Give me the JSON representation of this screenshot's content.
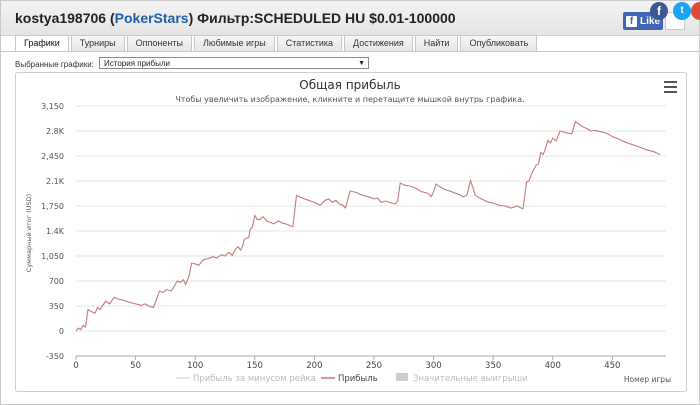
{
  "header": {
    "player": "kostya198706",
    "open_paren": "(",
    "room": "PokerStars",
    "close_paren": ")",
    "filter": "Фильтр:SCHEDULED HU $0.01-100000",
    "like_label": "Like"
  },
  "social": {
    "facebook_glyph": "f",
    "twitter_glyph": "t",
    "colors": {
      "facebook": "#3b5998",
      "twitter": "#1da1f2",
      "google": "#dd4b39"
    }
  },
  "tabs": [
    {
      "label": "Графики",
      "active": true
    },
    {
      "label": "Турниры"
    },
    {
      "label": "Оппоненты"
    },
    {
      "label": "Любимые игры"
    },
    {
      "label": "Статистика"
    },
    {
      "label": "Достижения"
    },
    {
      "label": "Найти"
    },
    {
      "label": "Опубликовать"
    }
  ],
  "selector": {
    "label": "Выбранные графики:",
    "value": "История прибыли",
    "arrow": "▼"
  },
  "chart_data": {
    "type": "line",
    "title": "Общая прибыль",
    "subtitle": "Чтобы увеличить изображение, кликните и перетащите мышкой внутрь графика.",
    "xlabel": "Номер игры",
    "ylabel": "Суммарный итог (USD)",
    "xlim": [
      0,
      495
    ],
    "ylim": [
      -350,
      3150
    ],
    "x_ticks": [
      0,
      50,
      100,
      150,
      200,
      250,
      300,
      350,
      400,
      450
    ],
    "y_ticks": [
      -350,
      0,
      350,
      700,
      1050,
      1400,
      1750,
      2100,
      2450,
      2800,
      3150
    ],
    "y_tick_labels": [
      "-350",
      "0",
      "350",
      "700",
      "1,050",
      "1.4K",
      "1,750",
      "2.1K",
      "2,450",
      "2.8K",
      "3,150"
    ],
    "grid": true,
    "legend_position": "bottom-center",
    "series": [
      {
        "name": "Прибыль",
        "color": "#c47b7b",
        "points": [
          [
            0,
            0
          ],
          [
            2,
            40
          ],
          [
            4,
            20
          ],
          [
            6,
            80
          ],
          [
            8,
            50
          ],
          [
            10,
            300
          ],
          [
            13,
            270
          ],
          [
            16,
            250
          ],
          [
            18,
            330
          ],
          [
            20,
            300
          ],
          [
            25,
            420
          ],
          [
            28,
            380
          ],
          [
            32,
            470
          ],
          [
            35,
            450
          ],
          [
            40,
            430
          ],
          [
            45,
            400
          ],
          [
            50,
            380
          ],
          [
            55,
            360
          ],
          [
            58,
            380
          ],
          [
            62,
            340
          ],
          [
            65,
            330
          ],
          [
            67,
            420
          ],
          [
            70,
            560
          ],
          [
            73,
            540
          ],
          [
            76,
            580
          ],
          [
            80,
            560
          ],
          [
            85,
            700
          ],
          [
            88,
            680
          ],
          [
            90,
            720
          ],
          [
            92,
            650
          ],
          [
            95,
            780
          ],
          [
            97,
            950
          ],
          [
            100,
            940
          ],
          [
            103,
            920
          ],
          [
            107,
            1000
          ],
          [
            110,
            1010
          ],
          [
            115,
            1040
          ],
          [
            118,
            1020
          ],
          [
            122,
            1070
          ],
          [
            125,
            1050
          ],
          [
            128,
            1100
          ],
          [
            131,
            1060
          ],
          [
            134,
            1150
          ],
          [
            136,
            1180
          ],
          [
            138,
            1130
          ],
          [
            140,
            1200
          ],
          [
            141,
            1280
          ],
          [
            143,
            1300
          ],
          [
            145,
            1310
          ],
          [
            146,
            1420
          ],
          [
            148,
            1450
          ],
          [
            150,
            1620
          ],
          [
            152,
            1560
          ],
          [
            154,
            1560
          ],
          [
            157,
            1600
          ],
          [
            160,
            1540
          ],
          [
            163,
            1520
          ],
          [
            166,
            1500
          ],
          [
            170,
            1540
          ],
          [
            173,
            1510
          ],
          [
            176,
            1500
          ],
          [
            179,
            1480
          ],
          [
            182,
            1460
          ],
          [
            185,
            1900
          ],
          [
            190,
            1860
          ],
          [
            195,
            1830
          ],
          [
            200,
            1800
          ],
          [
            205,
            1760
          ],
          [
            209,
            1830
          ],
          [
            212,
            1850
          ],
          [
            215,
            1800
          ],
          [
            218,
            1830
          ],
          [
            221,
            1780
          ],
          [
            224,
            1760
          ],
          [
            226,
            1720
          ],
          [
            230,
            1960
          ],
          [
            235,
            1940
          ],
          [
            240,
            1900
          ],
          [
            245,
            1880
          ],
          [
            250,
            1850
          ],
          [
            253,
            1860
          ],
          [
            256,
            1800
          ],
          [
            260,
            1820
          ],
          [
            265,
            1790
          ],
          [
            268,
            1780
          ],
          [
            270,
            1830
          ],
          [
            272,
            2070
          ],
          [
            276,
            2040
          ],
          [
            280,
            2030
          ],
          [
            285,
            2000
          ],
          [
            290,
            1950
          ],
          [
            295,
            1930
          ],
          [
            298,
            1880
          ],
          [
            300,
            1950
          ],
          [
            302,
            2060
          ],
          [
            306,
            2010
          ],
          [
            310,
            1980
          ],
          [
            315,
            1950
          ],
          [
            320,
            1920
          ],
          [
            325,
            1880
          ],
          [
            328,
            1900
          ],
          [
            331,
            2110
          ],
          [
            335,
            1900
          ],
          [
            340,
            1850
          ],
          [
            345,
            1810
          ],
          [
            350,
            1790
          ],
          [
            355,
            1760
          ],
          [
            360,
            1750
          ],
          [
            365,
            1720
          ],
          [
            370,
            1750
          ],
          [
            375,
            1710
          ],
          [
            378,
            2080
          ],
          [
            380,
            2100
          ],
          [
            383,
            2230
          ],
          [
            386,
            2320
          ],
          [
            388,
            2340
          ],
          [
            390,
            2500
          ],
          [
            392,
            2470
          ],
          [
            394,
            2560
          ],
          [
            396,
            2670
          ],
          [
            398,
            2630
          ],
          [
            400,
            2700
          ],
          [
            403,
            2660
          ],
          [
            406,
            2800
          ],
          [
            410,
            2780
          ],
          [
            413,
            2770
          ],
          [
            416,
            2760
          ],
          [
            419,
            2930
          ],
          [
            422,
            2900
          ],
          [
            425,
            2860
          ],
          [
            428,
            2840
          ],
          [
            432,
            2800
          ],
          [
            436,
            2810
          ],
          [
            440,
            2790
          ],
          [
            445,
            2770
          ],
          [
            450,
            2720
          ],
          [
            455,
            2690
          ],
          [
            460,
            2650
          ],
          [
            465,
            2620
          ],
          [
            470,
            2590
          ],
          [
            475,
            2560
          ],
          [
            480,
            2530
          ],
          [
            485,
            2510
          ],
          [
            490,
            2470
          ]
        ]
      }
    ],
    "legend": [
      {
        "label": "Прибыль за минусом рейка",
        "color": "#dddddd",
        "kind": "line"
      },
      {
        "label": "Прибыль",
        "color": "#c47b7b",
        "kind": "line"
      },
      {
        "label": "Значительные выигрыши",
        "color": "#cccccc",
        "kind": "box"
      }
    ]
  }
}
